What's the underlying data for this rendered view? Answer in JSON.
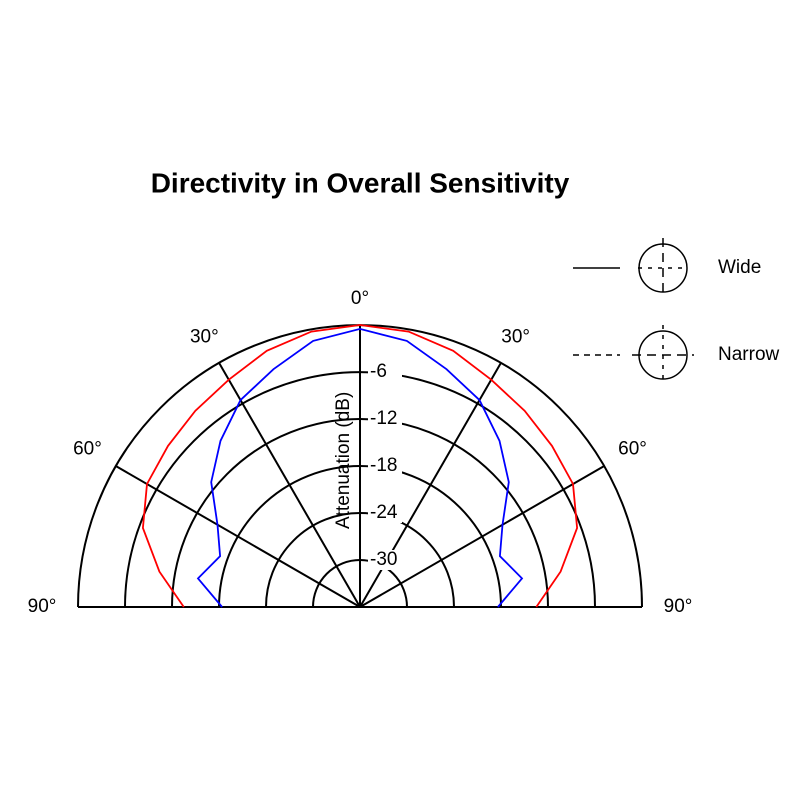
{
  "chart_data": {
    "type": "polar",
    "title": "Directivity in Overall Sensitivity",
    "r_label": "Attenuation (dB)",
    "rlim": [
      -36,
      0
    ],
    "rticks": [
      -30,
      -24,
      -18,
      -12,
      -6
    ],
    "thetalim": [
      -90,
      90
    ],
    "thetaticks": [
      {
        "value": -90,
        "label": "90°"
      },
      {
        "value": -60,
        "label": "60°"
      },
      {
        "value": -30,
        "label": "30°"
      },
      {
        "value": 0,
        "label": "0°"
      },
      {
        "value": 30,
        "label": "30°"
      },
      {
        "value": 60,
        "label": "60°"
      },
      {
        "value": 90,
        "label": "90°"
      }
    ],
    "theta": [
      -90,
      -80,
      -70,
      -60,
      -50,
      -40,
      -30,
      -20,
      -10,
      0,
      10,
      20,
      30,
      40,
      50,
      60,
      70,
      80,
      90
    ],
    "series": [
      {
        "name": "Wide",
        "color": "#ff0000",
        "legend_dash": false,
        "values": [
          -13.5,
          -10,
          -6.5,
          -4.6,
          -4.0,
          -3.3,
          -2.5,
          -1.2,
          -0.3,
          0,
          -0.3,
          -1.2,
          -2.5,
          -3.3,
          -4.0,
          -4.6,
          -6.5,
          -10,
          -13.5
        ]
      },
      {
        "name": "Narrow",
        "color": "#0000ff",
        "legend_dash": true,
        "values": [
          -18.4,
          -15,
          -17,
          -15,
          -11.2,
          -8.3,
          -5.5,
          -3.7,
          -1.5,
          -0.5,
          -1.5,
          -3.7,
          -5.5,
          -8.3,
          -11.2,
          -15,
          -17,
          -15,
          -18.4
        ]
      }
    ],
    "grid": true,
    "legend": "top-right"
  }
}
